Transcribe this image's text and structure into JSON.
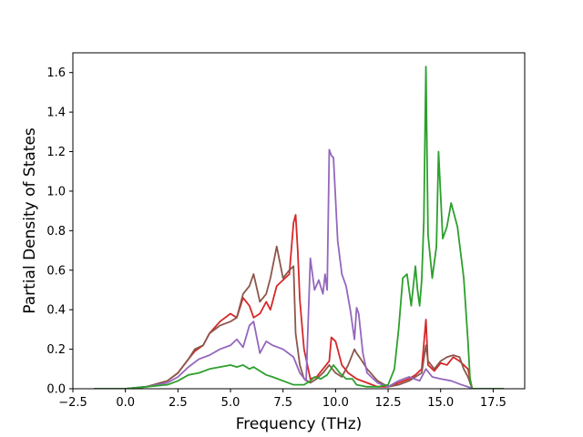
{
  "chart_data": {
    "type": "line",
    "title": "",
    "xlabel": "Frequency (THz)",
    "ylabel": "Partial Density of States",
    "xlim": [
      -2.5,
      19.0
    ],
    "ylim": [
      0.0,
      1.7
    ],
    "xticks": [
      -2.5,
      0.0,
      2.5,
      5.0,
      7.5,
      10.0,
      12.5,
      15.0,
      17.5
    ],
    "xtick_labels": [
      "−2.5",
      "0.0",
      "2.5",
      "5.0",
      "7.5",
      "10.0",
      "12.5",
      "15.0",
      "17.5"
    ],
    "yticks": [
      0.0,
      0.2,
      0.4,
      0.6,
      0.8,
      1.0,
      1.2,
      1.4,
      1.6
    ],
    "ytick_labels": [
      "0.0",
      "0.2",
      "0.4",
      "0.6",
      "0.8",
      "1.0",
      "1.2",
      "1.4",
      "1.6"
    ],
    "grid": false,
    "legend": "none",
    "series": [
      {
        "color": "#d62728",
        "x": [
          -1.5,
          0.0,
          1.0,
          2.0,
          2.5,
          3.0,
          3.3,
          3.7,
          4.0,
          4.5,
          5.0,
          5.3,
          5.6,
          5.9,
          6.1,
          6.4,
          6.7,
          6.9,
          7.2,
          7.5,
          7.8,
          8.0,
          8.1,
          8.2,
          8.3,
          8.5,
          8.8,
          9.1,
          9.4,
          9.7,
          9.8,
          10.0,
          10.3,
          10.6,
          11.0,
          11.5,
          12.0,
          12.5,
          13.0,
          13.5,
          13.8,
          14.1,
          14.3,
          14.4,
          14.7,
          15.0,
          15.3,
          15.6,
          15.9,
          16.1,
          16.3,
          16.5,
          18.0
        ],
        "y": [
          0.0,
          0.0,
          0.01,
          0.04,
          0.08,
          0.15,
          0.19,
          0.22,
          0.28,
          0.34,
          0.38,
          0.36,
          0.46,
          0.42,
          0.36,
          0.38,
          0.44,
          0.4,
          0.52,
          0.55,
          0.58,
          0.84,
          0.88,
          0.7,
          0.45,
          0.2,
          0.05,
          0.06,
          0.1,
          0.14,
          0.26,
          0.24,
          0.12,
          0.08,
          0.05,
          0.03,
          0.01,
          0.01,
          0.03,
          0.05,
          0.07,
          0.1,
          0.35,
          0.12,
          0.09,
          0.13,
          0.12,
          0.16,
          0.14,
          0.12,
          0.1,
          0.0,
          0.0
        ]
      },
      {
        "color": "#8c564b",
        "x": [
          -1.5,
          0.0,
          1.0,
          2.0,
          2.5,
          3.0,
          3.3,
          3.7,
          4.0,
          4.5,
          5.0,
          5.3,
          5.6,
          5.9,
          6.1,
          6.4,
          6.7,
          6.9,
          7.2,
          7.5,
          7.8,
          8.0,
          8.1,
          8.3,
          8.5,
          8.8,
          9.1,
          9.4,
          9.7,
          10.0,
          10.3,
          10.6,
          10.9,
          11.0,
          11.2,
          11.5,
          12.0,
          12.5,
          13.0,
          13.5,
          13.8,
          14.1,
          14.3,
          14.4,
          14.7,
          15.0,
          15.3,
          15.6,
          15.9,
          16.1,
          16.3,
          16.5,
          18.0
        ],
        "y": [
          0.0,
          0.0,
          0.01,
          0.04,
          0.08,
          0.15,
          0.2,
          0.22,
          0.28,
          0.32,
          0.34,
          0.36,
          0.48,
          0.52,
          0.58,
          0.44,
          0.48,
          0.56,
          0.72,
          0.56,
          0.6,
          0.62,
          0.28,
          0.12,
          0.05,
          0.03,
          0.05,
          0.08,
          0.12,
          0.08,
          0.06,
          0.12,
          0.2,
          0.18,
          0.15,
          0.1,
          0.04,
          0.01,
          0.02,
          0.04,
          0.06,
          0.08,
          0.22,
          0.14,
          0.1,
          0.14,
          0.16,
          0.17,
          0.16,
          0.1,
          0.06,
          0.0,
          0.0
        ]
      },
      {
        "color": "#9467bd",
        "x": [
          -1.5,
          0.0,
          1.0,
          2.0,
          2.5,
          3.0,
          3.5,
          4.0,
          4.5,
          5.0,
          5.3,
          5.6,
          5.9,
          6.1,
          6.4,
          6.7,
          7.0,
          7.5,
          8.0,
          8.3,
          8.6,
          8.8,
          9.0,
          9.2,
          9.4,
          9.5,
          9.6,
          9.7,
          9.8,
          9.9,
          10.1,
          10.3,
          10.5,
          10.7,
          10.9,
          11.0,
          11.1,
          11.3,
          11.5,
          12.0,
          12.5,
          13.0,
          13.5,
          14.0,
          14.3,
          14.6,
          15.0,
          15.5,
          16.0,
          16.3,
          16.5,
          18.0
        ],
        "y": [
          0.0,
          0.0,
          0.01,
          0.03,
          0.06,
          0.11,
          0.15,
          0.17,
          0.2,
          0.22,
          0.25,
          0.21,
          0.32,
          0.34,
          0.18,
          0.24,
          0.22,
          0.2,
          0.16,
          0.08,
          0.04,
          0.66,
          0.5,
          0.55,
          0.48,
          0.58,
          0.5,
          1.21,
          1.18,
          1.17,
          0.75,
          0.58,
          0.52,
          0.4,
          0.25,
          0.41,
          0.38,
          0.18,
          0.08,
          0.03,
          0.01,
          0.04,
          0.06,
          0.04,
          0.1,
          0.06,
          0.05,
          0.04,
          0.02,
          0.01,
          0.0,
          0.0
        ]
      },
      {
        "color": "#2ca02c",
        "x": [
          -1.5,
          0.0,
          1.0,
          2.0,
          2.5,
          3.0,
          3.5,
          4.0,
          4.5,
          5.0,
          5.3,
          5.6,
          5.9,
          6.1,
          6.4,
          6.7,
          7.0,
          7.5,
          8.0,
          8.5,
          8.8,
          9.0,
          9.3,
          9.6,
          9.9,
          10.2,
          10.5,
          10.8,
          11.0,
          11.5,
          12.0,
          12.5,
          12.8,
          13.0,
          13.2,
          13.4,
          13.6,
          13.8,
          13.9,
          14.0,
          14.1,
          14.2,
          14.3,
          14.4,
          14.6,
          14.8,
          14.9,
          15.0,
          15.1,
          15.3,
          15.5,
          15.8,
          16.1,
          16.3,
          16.4,
          16.5,
          18.0
        ],
        "y": [
          0.0,
          0.0,
          0.01,
          0.02,
          0.04,
          0.07,
          0.08,
          0.1,
          0.11,
          0.12,
          0.11,
          0.12,
          0.1,
          0.11,
          0.09,
          0.07,
          0.06,
          0.04,
          0.02,
          0.02,
          0.04,
          0.06,
          0.05,
          0.07,
          0.12,
          0.08,
          0.05,
          0.05,
          0.02,
          0.01,
          0.01,
          0.02,
          0.1,
          0.3,
          0.56,
          0.58,
          0.42,
          0.62,
          0.5,
          0.42,
          0.55,
          0.85,
          1.63,
          0.78,
          0.56,
          0.72,
          1.2,
          0.98,
          0.76,
          0.82,
          0.94,
          0.82,
          0.56,
          0.24,
          0.05,
          0.0,
          0.0
        ]
      }
    ]
  }
}
